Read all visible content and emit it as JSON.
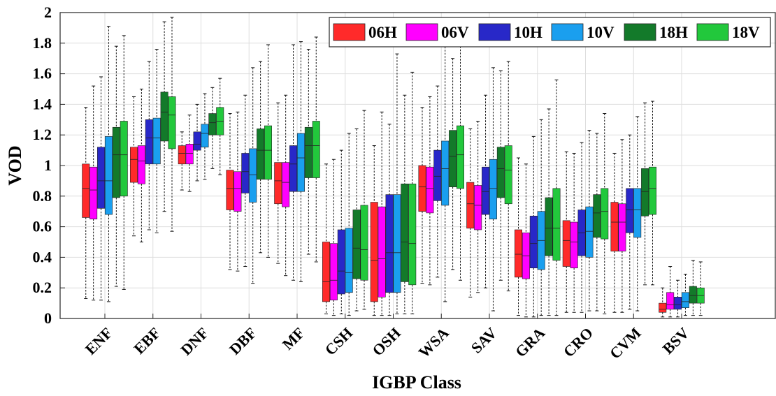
{
  "chart_data": {
    "type": "box",
    "xlabel": "IGBP Class",
    "ylabel": "VOD",
    "ylim": [
      0,
      2
    ],
    "yticks": [
      0,
      0.2,
      0.4,
      0.6,
      0.8,
      1,
      1.2,
      1.4,
      1.6,
      1.8,
      2
    ],
    "ytick_labels": [
      "0",
      "0.2",
      "0.4",
      "0.6",
      "0.8",
      "1",
      "1.2",
      "1.4",
      "1.6",
      "1.8",
      "2"
    ],
    "grid": true,
    "legend_position": "top-right",
    "categories": [
      "ENF",
      "EBF",
      "DNF",
      "DBF",
      "MF",
      "CSH",
      "OSH",
      "WSA",
      "SAV",
      "GRA",
      "CRO",
      "CVM",
      "BSV"
    ],
    "series": [
      {
        "name": "06H",
        "color": "#ff2a2a",
        "boxes": [
          {
            "min": 0.13,
            "q1": 0.66,
            "median": 0.85,
            "q3": 1.01,
            "max": 1.38
          },
          {
            "min": 0.54,
            "q1": 0.89,
            "median": 1.04,
            "q3": 1.12,
            "max": 1.45
          },
          {
            "min": 0.84,
            "q1": 1.01,
            "median": 1.08,
            "q3": 1.13,
            "max": 1.22
          },
          {
            "min": 0.32,
            "q1": 0.71,
            "median": 0.85,
            "q3": 0.97,
            "max": 1.34
          },
          {
            "min": 0.36,
            "q1": 0.75,
            "median": 0.9,
            "q3": 1.02,
            "max": 1.41
          },
          {
            "min": 0.03,
            "q1": 0.11,
            "median": 0.24,
            "q3": 0.5,
            "max": 1.01
          },
          {
            "min": 0.02,
            "q1": 0.11,
            "median": 0.38,
            "q3": 0.76,
            "max": 1.13
          },
          {
            "min": 0.23,
            "q1": 0.7,
            "median": 0.86,
            "q3": 1.0,
            "max": 1.38
          },
          {
            "min": 0.14,
            "q1": 0.59,
            "median": 0.75,
            "q3": 0.89,
            "max": 1.24
          },
          {
            "min": 0.02,
            "q1": 0.27,
            "median": 0.42,
            "q3": 0.58,
            "max": 1.05
          },
          {
            "min": 0.04,
            "q1": 0.34,
            "median": 0.51,
            "q3": 0.64,
            "max": 1.09
          },
          {
            "min": 0.04,
            "q1": 0.44,
            "median": 0.63,
            "q3": 0.76,
            "max": 1.08
          },
          {
            "min": 0.01,
            "q1": 0.04,
            "median": 0.06,
            "q3": 0.1,
            "max": 0.2
          }
        ]
      },
      {
        "name": "06V",
        "color": "#ff00ff",
        "boxes": [
          {
            "min": 0.12,
            "q1": 0.65,
            "median": 0.84,
            "q3": 0.99,
            "max": 1.52
          },
          {
            "min": 0.5,
            "q1": 0.88,
            "median": 1.03,
            "q3": 1.13,
            "max": 1.5
          },
          {
            "min": 0.83,
            "q1": 1.01,
            "median": 1.08,
            "q3": 1.14,
            "max": 1.33
          },
          {
            "min": 0.31,
            "q1": 0.7,
            "median": 0.85,
            "q3": 0.96,
            "max": 1.35
          },
          {
            "min": 0.28,
            "q1": 0.73,
            "median": 0.89,
            "q3": 1.02,
            "max": 1.46
          },
          {
            "min": 0.02,
            "q1": 0.12,
            "median": 0.25,
            "q3": 0.49,
            "max": 1.04
          },
          {
            "min": 0.02,
            "q1": 0.14,
            "median": 0.39,
            "q3": 0.73,
            "max": 1.35
          },
          {
            "min": 0.22,
            "q1": 0.69,
            "median": 0.85,
            "q3": 0.99,
            "max": 1.45
          },
          {
            "min": 0.17,
            "q1": 0.58,
            "median": 0.74,
            "q3": 0.87,
            "max": 1.29
          },
          {
            "min": 0.01,
            "q1": 0.26,
            "median": 0.41,
            "q3": 0.56,
            "max": 1.01
          },
          {
            "min": 0.04,
            "q1": 0.33,
            "median": 0.5,
            "q3": 0.63,
            "max": 1.08
          },
          {
            "min": 0.04,
            "q1": 0.44,
            "median": 0.63,
            "q3": 0.75,
            "max": 1.17
          },
          {
            "min": 0.01,
            "q1": 0.06,
            "median": 0.09,
            "q3": 0.17,
            "max": 0.34
          }
        ]
      },
      {
        "name": "10H",
        "color": "#2828c8",
        "boxes": [
          {
            "min": 0.12,
            "q1": 0.72,
            "median": 0.9,
            "q3": 1.12,
            "max": 1.58
          },
          {
            "min": 0.58,
            "q1": 1.01,
            "median": 1.18,
            "q3": 1.3,
            "max": 1.68
          },
          {
            "min": 0.9,
            "q1": 1.1,
            "median": 1.14,
            "q3": 1.22,
            "max": 1.4
          },
          {
            "min": 0.34,
            "q1": 0.82,
            "median": 0.96,
            "q3": 1.08,
            "max": 1.46
          },
          {
            "min": 0.25,
            "q1": 0.83,
            "median": 1.01,
            "q3": 1.13,
            "max": 1.79
          },
          {
            "min": 0.03,
            "q1": 0.16,
            "median": 0.31,
            "q3": 0.58,
            "max": 1.1
          },
          {
            "min": 0.02,
            "q1": 0.17,
            "median": 0.43,
            "q3": 0.81,
            "max": 1.27
          },
          {
            "min": 0.27,
            "q1": 0.77,
            "median": 0.93,
            "q3": 1.1,
            "max": 1.52
          },
          {
            "min": 0.2,
            "q1": 0.68,
            "median": 0.83,
            "q3": 0.99,
            "max": 1.46
          },
          {
            "min": 0.01,
            "q1": 0.33,
            "median": 0.49,
            "q3": 0.67,
            "max": 1.19
          },
          {
            "min": 0.04,
            "q1": 0.41,
            "median": 0.56,
            "q3": 0.71,
            "max": 1.15
          },
          {
            "min": 0.06,
            "q1": 0.56,
            "median": 0.71,
            "q3": 0.85,
            "max": 1.2
          },
          {
            "min": 0.01,
            "q1": 0.06,
            "median": 0.09,
            "q3": 0.14,
            "max": 0.25
          }
        ]
      },
      {
        "name": "10V",
        "color": "#1a9fef",
        "boxes": [
          {
            "min": 0.11,
            "q1": 0.68,
            "median": 0.9,
            "q3": 1.19,
            "max": 1.91
          },
          {
            "min": 0.56,
            "q1": 1.01,
            "median": 1.18,
            "q3": 1.31,
            "max": 1.76
          },
          {
            "min": 0.91,
            "q1": 1.12,
            "median": 1.21,
            "q3": 1.27,
            "max": 1.47
          },
          {
            "min": 0.23,
            "q1": 0.76,
            "median": 0.94,
            "q3": 1.11,
            "max": 1.64
          },
          {
            "min": 0.24,
            "q1": 0.83,
            "median": 1.05,
            "q3": 1.21,
            "max": 1.81
          },
          {
            "min": 0.02,
            "q1": 0.17,
            "median": 0.3,
            "q3": 0.59,
            "max": 1.21
          },
          {
            "min": 0.03,
            "q1": 0.17,
            "median": 0.43,
            "q3": 0.81,
            "max": 1.73
          },
          {
            "min": 0.11,
            "q1": 0.74,
            "median": 0.98,
            "q3": 1.16,
            "max": 1.88
          },
          {
            "min": 0.05,
            "q1": 0.65,
            "median": 0.85,
            "q3": 1.04,
            "max": 1.64
          },
          {
            "min": 0.02,
            "q1": 0.32,
            "median": 0.51,
            "q3": 0.7,
            "max": 1.3
          },
          {
            "min": 0.05,
            "q1": 0.4,
            "median": 0.57,
            "q3": 0.73,
            "max": 1.23
          },
          {
            "min": 0.05,
            "q1": 0.53,
            "median": 0.71,
            "q3": 0.85,
            "max": 1.32
          },
          {
            "min": 0.02,
            "q1": 0.07,
            "median": 0.11,
            "q3": 0.17,
            "max": 0.29
          }
        ]
      },
      {
        "name": "18H",
        "color": "#137a2a",
        "boxes": [
          {
            "min": 0.21,
            "q1": 0.79,
            "median": 1.07,
            "q3": 1.25,
            "max": 1.78
          },
          {
            "min": 0.7,
            "q1": 1.16,
            "median": 1.35,
            "q3": 1.48,
            "max": 1.94
          },
          {
            "min": 0.98,
            "q1": 1.2,
            "median": 1.28,
            "q3": 1.34,
            "max": 1.51
          },
          {
            "min": 0.43,
            "q1": 0.91,
            "median": 1.1,
            "q3": 1.24,
            "max": 1.68
          },
          {
            "min": 0.42,
            "q1": 0.92,
            "median": 1.13,
            "q3": 1.25,
            "max": 1.76
          },
          {
            "min": 0.05,
            "q1": 0.26,
            "median": 0.46,
            "q3": 0.71,
            "max": 1.24
          },
          {
            "min": 0.03,
            "q1": 0.24,
            "median": 0.5,
            "q3": 0.88,
            "max": 1.46
          },
          {
            "min": 0.32,
            "q1": 0.86,
            "median": 1.06,
            "q3": 1.23,
            "max": 1.7
          },
          {
            "min": 0.25,
            "q1": 0.79,
            "median": 0.98,
            "q3": 1.12,
            "max": 1.62
          },
          {
            "min": 0.02,
            "q1": 0.41,
            "median": 0.59,
            "q3": 0.79,
            "max": 1.37
          },
          {
            "min": 0.05,
            "q1": 0.53,
            "median": 0.69,
            "q3": 0.81,
            "max": 1.21
          },
          {
            "min": 0.22,
            "q1": 0.67,
            "median": 0.83,
            "q3": 0.98,
            "max": 1.41
          },
          {
            "min": 0.02,
            "q1": 0.1,
            "median": 0.15,
            "q3": 0.21,
            "max": 0.38
          }
        ]
      },
      {
        "name": "18V",
        "color": "#22c83c",
        "boxes": [
          {
            "min": 0.19,
            "q1": 0.8,
            "median": 1.07,
            "q3": 1.29,
            "max": 1.85
          },
          {
            "min": 0.57,
            "q1": 1.11,
            "median": 1.33,
            "q3": 1.45,
            "max": 1.97
          },
          {
            "min": 0.94,
            "q1": 1.2,
            "median": 1.29,
            "q3": 1.38,
            "max": 1.57
          },
          {
            "min": 0.4,
            "q1": 0.91,
            "median": 1.1,
            "q3": 1.26,
            "max": 1.79
          },
          {
            "min": 0.37,
            "q1": 0.92,
            "median": 1.13,
            "q3": 1.29,
            "max": 1.84
          },
          {
            "min": 0.06,
            "q1": 0.25,
            "median": 0.45,
            "q3": 0.74,
            "max": 1.36
          },
          {
            "min": 0.03,
            "q1": 0.22,
            "median": 0.49,
            "q3": 0.88,
            "max": 1.61
          },
          {
            "min": 0.25,
            "q1": 0.85,
            "median": 1.07,
            "q3": 1.26,
            "max": 1.8
          },
          {
            "min": 0.18,
            "q1": 0.75,
            "median": 0.97,
            "q3": 1.13,
            "max": 1.68
          },
          {
            "min": 0.02,
            "q1": 0.38,
            "median": 0.59,
            "q3": 0.85,
            "max": 1.56
          },
          {
            "min": 0.03,
            "q1": 0.52,
            "median": 0.7,
            "q3": 0.85,
            "max": 1.34
          },
          {
            "min": 0.22,
            "q1": 0.68,
            "median": 0.85,
            "q3": 0.99,
            "max": 1.42
          },
          {
            "min": 0.02,
            "q1": 0.1,
            "median": 0.15,
            "q3": 0.2,
            "max": 0.37
          }
        ]
      }
    ]
  }
}
